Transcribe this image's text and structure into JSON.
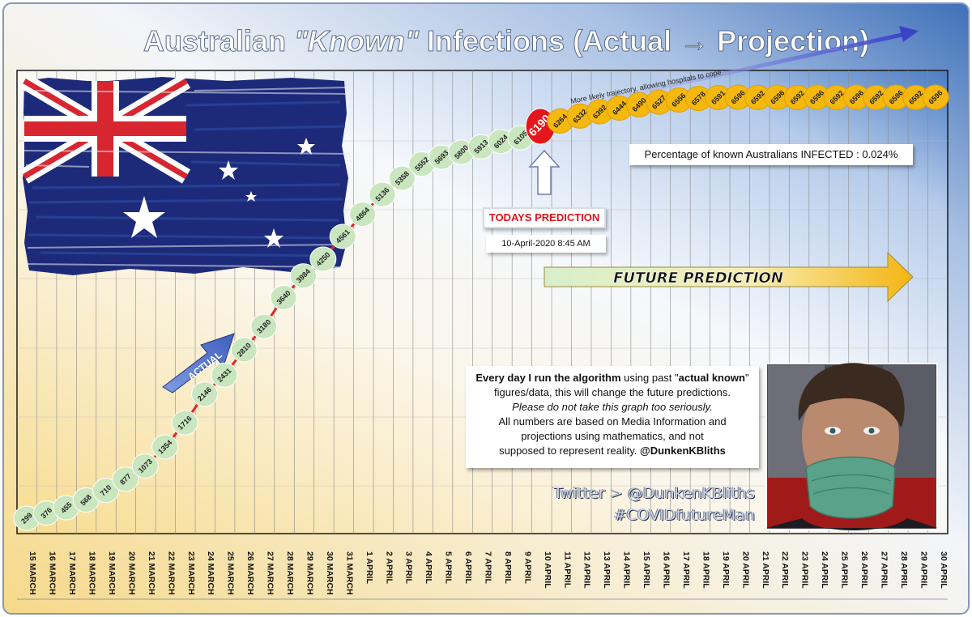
{
  "title": {
    "part1": "Australian ",
    "part2": "\"Known\"",
    "part3": " Infections (Actual → Projection)"
  },
  "chart_data": {
    "type": "line",
    "title": "Australian \"Known\" Infections (Actual → Projection)",
    "x": [
      "15 MARCH",
      "16 MARCH",
      "17 MARCH",
      "18 MARCH",
      "19 MARCH",
      "20 MARCH",
      "21 MARCH",
      "22 MARCH",
      "23 MARCH",
      "24 MARCH",
      "25 MARCH",
      "26 MARCH",
      "27 MARCH",
      "28 MARCH",
      "29 MARCH",
      "30 MARCH",
      "31 MARCH",
      "1 APRIL",
      "2 APRIL",
      "3 APRIL",
      "4 APRIL",
      "5 APRIL",
      "6 APRIL",
      "7 APRIL",
      "8 APRIL",
      "9 APRIL",
      "10 APRIL",
      "11 APRIL",
      "12 APRIL",
      "13 APRIL",
      "14 APRIL",
      "15 APRIL",
      "16 APRIL",
      "17 APRIL",
      "18 APRIL",
      "19 APRIL",
      "20 APRIL",
      "21 APRIL",
      "22 APRIL",
      "23 APRIL",
      "24 APRIL",
      "25 APRIL",
      "26 APRIL",
      "27 APRIL",
      "28 APRIL",
      "29 APRIL",
      "30 APRIL"
    ],
    "series": [
      {
        "name": "Actual",
        "values": [
          299,
          376,
          455,
          568,
          710,
          877,
          1073,
          1354,
          1716,
          2146,
          2431,
          2810,
          3180,
          3640,
          3984,
          4250,
          4561,
          4864,
          5136,
          5358,
          5552,
          5693,
          5800,
          5913,
          6024,
          6105,
          null,
          null,
          null,
          null,
          null,
          null,
          null,
          null,
          null,
          null,
          null,
          null,
          null,
          null,
          null,
          null,
          null,
          null,
          null,
          null,
          null
        ]
      },
      {
        "name": "Today",
        "values": [
          null,
          null,
          null,
          null,
          null,
          null,
          null,
          null,
          null,
          null,
          null,
          null,
          null,
          null,
          null,
          null,
          null,
          null,
          null,
          null,
          null,
          null,
          null,
          null,
          null,
          null,
          6190,
          null,
          null,
          null,
          null,
          null,
          null,
          null,
          null,
          null,
          null,
          null,
          null,
          null,
          null,
          null,
          null,
          null,
          null,
          null,
          null
        ]
      },
      {
        "name": "Projection",
        "values": [
          null,
          null,
          null,
          null,
          null,
          null,
          null,
          null,
          null,
          null,
          null,
          null,
          null,
          null,
          null,
          null,
          null,
          null,
          null,
          null,
          null,
          null,
          null,
          null,
          null,
          null,
          null,
          6264,
          6332,
          6392,
          6444,
          6490,
          6527,
          6556,
          6578,
          6591,
          6596,
          6592,
          6596,
          6592,
          6596,
          6592,
          6596,
          6592,
          6596,
          6592,
          6596
        ]
      }
    ],
    "labels": {
      "actual_arrow": "ACTUAL",
      "future_arrow": "FUTURE PREDICTION",
      "trajectory": "More likely trajectory, allowing  hospitals to cope",
      "today_value": "6190",
      "today_label": "TODAYS PREDICTION",
      "today_date": "10-April-2020  8:45  AM",
      "percentage": "Percentage of known Australians INFECTED : 0.024%"
    },
    "colors": {
      "actual": "#c9e6bf",
      "actual_line": "#e02828",
      "projection": "#f5b80f",
      "today": "#e4161c",
      "trend_arrow": "#3a43c8"
    },
    "grid": true,
    "legend": "none"
  },
  "info": {
    "l1a": "Every day I run the algorithm",
    "l1b": " using past \"",
    "l1c": "actual known",
    "l1d": "\"",
    "l2": "figures/data, this will change the future  predictions.",
    "l3": "Please do not take this graph too seriously.",
    "l4": "All numbers  are based on Media Information  and",
    "l5": "projections using  mathematics, and not",
    "l6a": "supposed to represent reality. ",
    "l6b": "@DunkenKBliths"
  },
  "twitter": {
    "handle": "Twitter > @DunkenKBliths",
    "hashtag": "#COVIDfutureMan"
  },
  "photo": {
    "icon": "masked-man-photo"
  },
  "flag": {
    "icon": "australian-flag"
  }
}
